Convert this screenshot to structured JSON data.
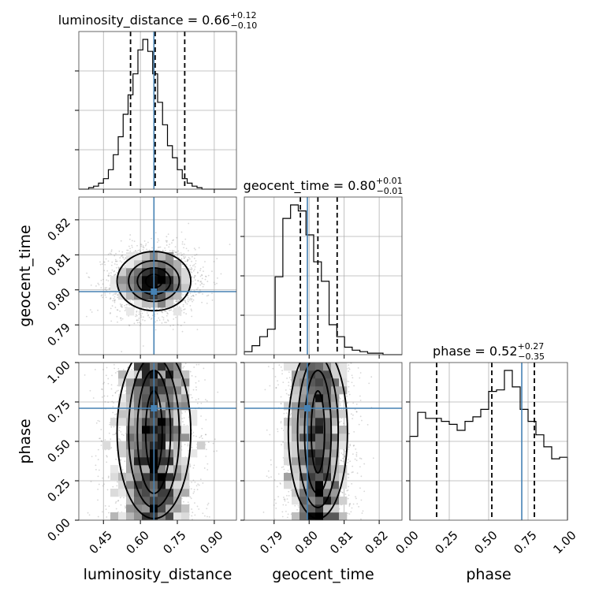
{
  "chart_data": {
    "type": "corner",
    "parameters": [
      "luminosity_distance",
      "geocent_time",
      "phase"
    ],
    "ranges": {
      "luminosity_distance": [
        0.35,
        0.99
      ],
      "geocent_time": [
        0.7815,
        0.8265
      ],
      "phase": [
        0.0,
        1.0
      ]
    },
    "truths": {
      "luminosity_distance": 0.655,
      "geocent_time": 0.7995,
      "phase": 0.71
    },
    "ticks": {
      "luminosity_distance": [
        0.45,
        0.6,
        0.75,
        0.9
      ],
      "geocent_time": [
        0.79,
        0.8,
        0.81,
        0.82
      ],
      "phase": [
        0.0,
        0.25,
        0.5,
        0.75,
        1.0
      ]
    },
    "tick_labels": {
      "luminosity_distance": [
        "0.45",
        "0.60",
        "0.75",
        "0.90"
      ],
      "geocent_time": [
        "0.79",
        "0.80",
        "0.81",
        "0.82"
      ],
      "phase": [
        "0.00",
        "0.25",
        "0.50",
        "0.75",
        "1.00"
      ]
    },
    "axis_labels": {
      "luminosity_distance": "luminosity_distance",
      "geocent_time": "geocent_time",
      "phase": "phase"
    },
    "titles": [
      {
        "param": "luminosity_distance",
        "prefix": "luminosity_distance = 0.66",
        "plus": "+0.12",
        "minus": "−0.10"
      },
      {
        "param": "geocent_time",
        "prefix": "geocent_time = 0.80",
        "plus": "+0.01",
        "minus": "−0.01"
      },
      {
        "param": "phase",
        "prefix": "phase = 0.52",
        "plus": "+0.27",
        "minus": "−0.35"
      }
    ],
    "quantiles": {
      "luminosity_distance": [
        0.56,
        0.66,
        0.78
      ],
      "geocent_time": [
        0.7975,
        0.8025,
        0.808
      ],
      "phase": [
        0.17,
        0.52,
        0.79
      ]
    },
    "histograms": {
      "luminosity_distance": {
        "edges": [
          0.35,
          0.37,
          0.39,
          0.41,
          0.43,
          0.45,
          0.47,
          0.49,
          0.51,
          0.53,
          0.55,
          0.57,
          0.59,
          0.61,
          0.63,
          0.65,
          0.67,
          0.69,
          0.71,
          0.73,
          0.75,
          0.77,
          0.79,
          0.81,
          0.83,
          0.85,
          0.87,
          0.89,
          0.91,
          0.93,
          0.95,
          0.97,
          0.99
        ],
        "counts": [
          0,
          0,
          1,
          2,
          4,
          7,
          13,
          23,
          35,
          50,
          63,
          77,
          93,
          100,
          92,
          77,
          58,
          43,
          29,
          21,
          13,
          7,
          4,
          2,
          1,
          0,
          0,
          0,
          0,
          0,
          0,
          0
        ]
      },
      "geocent_time": {
        "edges": [
          0.7815,
          0.7837,
          0.7859,
          0.7881,
          0.7903,
          0.7925,
          0.7947,
          0.7969,
          0.7991,
          0.8013,
          0.8035,
          0.8057,
          0.8079,
          0.8101,
          0.8123,
          0.8145,
          0.8167,
          0.8189,
          0.8211,
          0.8233,
          0.8255,
          0.8265
        ],
        "counts": [
          2,
          6,
          12,
          17,
          52,
          91,
          100,
          96,
          80,
          62,
          49,
          20,
          12,
          5,
          3,
          2,
          1,
          1,
          0,
          0,
          0
        ]
      },
      "phase": {
        "edges": [
          0.0,
          0.05,
          0.1,
          0.15,
          0.2,
          0.25,
          0.3,
          0.35,
          0.4,
          0.45,
          0.5,
          0.55,
          0.6,
          0.65,
          0.7,
          0.75,
          0.8,
          0.85,
          0.9,
          0.95,
          1.0
        ],
        "counts": [
          56,
          72,
          68,
          68,
          66,
          64,
          60,
          66,
          69,
          74,
          86,
          87,
          100,
          89,
          74,
          66,
          57,
          49,
          41,
          42
        ]
      }
    },
    "scatter_samples": 2600
  }
}
